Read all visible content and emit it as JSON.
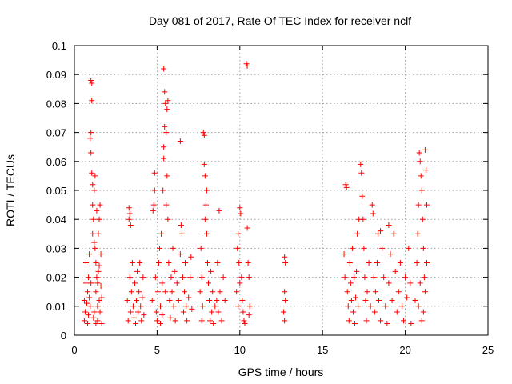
{
  "chart_data": {
    "type": "scatter",
    "title": "Day 081 of 2017, Rate Of TEC Index for receiver nclf",
    "xlabel": "GPS time / hours",
    "ylabel": "ROTI / TECUs",
    "xlim": [
      0,
      25
    ],
    "ylim": [
      0,
      0.1
    ],
    "xticks": [
      0,
      5,
      10,
      15,
      20,
      25
    ],
    "xtick_labels": [
      "0",
      "5",
      "10",
      "15",
      "20",
      "25"
    ],
    "yticks": [
      0,
      0.01,
      0.02,
      0.03,
      0.04,
      0.05,
      0.06,
      0.07,
      0.08,
      0.09,
      0.1
    ],
    "ytick_labels": [
      "0",
      "0.01",
      "0.02",
      "0.03",
      "0.04",
      "0.05",
      "0.06",
      "0.07",
      "0.08",
      "0.09",
      "0.1"
    ],
    "grid": true,
    "marker": "plus",
    "color": "#ff0000",
    "series": [
      {
        "name": "ROTI",
        "points": [
          [
            0.6,
            0.012
          ],
          [
            0.6,
            0.005
          ],
          [
            0.65,
            0.008
          ],
          [
            0.7,
            0.018
          ],
          [
            0.7,
            0.025
          ],
          [
            0.75,
            0.011
          ],
          [
            0.8,
            0.004
          ],
          [
            0.8,
            0.015
          ],
          [
            0.85,
            0.02
          ],
          [
            0.85,
            0.007
          ],
          [
            0.9,
            0.013
          ],
          [
            0.9,
            0.028
          ],
          [
            0.95,
            0.01
          ],
          [
            1.0,
            0.018
          ],
          [
            1.0,
            0.088
          ],
          [
            1.05,
            0.087
          ],
          [
            1.05,
            0.081
          ],
          [
            1.0,
            0.07
          ],
          [
            0.95,
            0.068
          ],
          [
            1.0,
            0.063
          ],
          [
            1.05,
            0.056
          ],
          [
            1.1,
            0.052
          ],
          [
            1.1,
            0.045
          ],
          [
            1.15,
            0.04
          ],
          [
            1.1,
            0.035
          ],
          [
            1.2,
            0.032
          ],
          [
            1.2,
            0.05
          ],
          [
            1.25,
            0.055
          ],
          [
            1.25,
            0.03
          ],
          [
            1.3,
            0.025
          ],
          [
            1.3,
            0.015
          ],
          [
            1.35,
            0.043
          ],
          [
            1.35,
            0.02
          ],
          [
            1.4,
            0.01
          ],
          [
            1.4,
            0.005
          ],
          [
            1.45,
            0.022
          ],
          [
            1.45,
            0.035
          ],
          [
            1.5,
            0.012
          ],
          [
            1.5,
            0.04
          ],
          [
            1.55,
            0.008
          ],
          [
            1.55,
            0.045
          ],
          [
            1.6,
            0.017
          ],
          [
            1.6,
            0.028
          ],
          [
            1.65,
            0.004
          ],
          [
            1.65,
            0.013
          ],
          [
            1.2,
            0.008
          ],
          [
            1.15,
            0.006
          ],
          [
            1.3,
            0.004
          ],
          [
            1.4,
            0.018
          ],
          [
            1.5,
            0.024
          ],
          [
            3.2,
            0.012
          ],
          [
            3.25,
            0.005
          ],
          [
            3.3,
            0.04
          ],
          [
            3.3,
            0.044
          ],
          [
            3.35,
            0.042
          ],
          [
            3.4,
            0.038
          ],
          [
            3.35,
            0.02
          ],
          [
            3.4,
            0.008
          ],
          [
            3.45,
            0.015
          ],
          [
            3.5,
            0.025
          ],
          [
            3.55,
            0.01
          ],
          [
            3.6,
            0.006
          ],
          [
            3.65,
            0.018
          ],
          [
            3.7,
            0.004
          ],
          [
            3.75,
            0.012
          ],
          [
            3.8,
            0.022
          ],
          [
            3.85,
            0.008
          ],
          [
            3.9,
            0.015
          ],
          [
            3.95,
            0.025
          ],
          [
            4.0,
            0.01
          ],
          [
            4.05,
            0.005
          ],
          [
            4.1,
            0.013
          ],
          [
            4.15,
            0.02
          ],
          [
            4.2,
            0.007
          ],
          [
            4.7,
            0.012
          ],
          [
            4.75,
            0.043
          ],
          [
            4.8,
            0.045
          ],
          [
            4.85,
            0.05
          ],
          [
            4.85,
            0.056
          ],
          [
            4.9,
            0.02
          ],
          [
            4.95,
            0.008
          ],
          [
            5.0,
            0.005
          ],
          [
            5.05,
            0.015
          ],
          [
            5.1,
            0.025
          ],
          [
            5.15,
            0.03
          ],
          [
            5.2,
            0.01
          ],
          [
            5.25,
            0.035
          ],
          [
            5.3,
            0.018
          ],
          [
            5.35,
            0.05
          ],
          [
            5.4,
            0.061
          ],
          [
            5.4,
            0.065
          ],
          [
            5.45,
            0.072
          ],
          [
            5.45,
            0.084
          ],
          [
            5.4,
            0.092
          ],
          [
            5.5,
            0.08
          ],
          [
            5.55,
            0.07
          ],
          [
            5.6,
            0.078
          ],
          [
            5.65,
            0.081
          ],
          [
            5.6,
            0.055
          ],
          [
            5.55,
            0.045
          ],
          [
            5.65,
            0.04
          ],
          [
            5.7,
            0.025
          ],
          [
            5.75,
            0.012
          ],
          [
            5.8,
            0.006
          ],
          [
            5.85,
            0.02
          ],
          [
            5.9,
            0.015
          ],
          [
            5.95,
            0.03
          ],
          [
            6.0,
            0.01
          ],
          [
            6.05,
            0.022
          ],
          [
            6.1,
            0.005
          ],
          [
            6.2,
            0.018
          ],
          [
            6.3,
            0.012
          ],
          [
            6.4,
            0.067
          ],
          [
            6.4,
            0.028
          ],
          [
            6.45,
            0.038
          ],
          [
            6.5,
            0.035
          ],
          [
            6.55,
            0.02
          ],
          [
            6.6,
            0.008
          ],
          [
            6.65,
            0.015
          ],
          [
            6.7,
            0.025
          ],
          [
            6.75,
            0.01
          ],
          [
            6.8,
            0.005
          ],
          [
            6.9,
            0.013
          ],
          [
            7.0,
            0.02
          ],
          [
            7.05,
            0.027
          ],
          [
            7.1,
            0.009
          ],
          [
            5.2,
            0.004
          ],
          [
            5.3,
            0.007
          ],
          [
            5.5,
            0.015
          ],
          [
            7.6,
            0.015
          ],
          [
            7.65,
            0.03
          ],
          [
            7.7,
            0.02
          ],
          [
            7.75,
            0.01
          ],
          [
            7.8,
            0.07
          ],
          [
            7.85,
            0.069
          ],
          [
            7.85,
            0.059
          ],
          [
            7.9,
            0.055
          ],
          [
            7.95,
            0.045
          ],
          [
            8.0,
            0.05
          ],
          [
            7.9,
            0.04
          ],
          [
            8.0,
            0.035
          ],
          [
            8.05,
            0.025
          ],
          [
            8.1,
            0.018
          ],
          [
            8.15,
            0.012
          ],
          [
            8.2,
            0.005
          ],
          [
            8.25,
            0.022
          ],
          [
            8.3,
            0.008
          ],
          [
            7.7,
            0.005
          ],
          [
            8.35,
            0.015
          ],
          [
            8.4,
            0.004
          ],
          [
            8.5,
            0.01
          ],
          [
            8.6,
            0.012
          ],
          [
            8.7,
            0.008
          ],
          [
            8.75,
            0.043
          ],
          [
            8.8,
            0.015
          ],
          [
            8.9,
            0.005
          ],
          [
            9.0,
            0.02
          ],
          [
            9.1,
            0.012
          ],
          [
            8.65,
            0.025
          ],
          [
            9.8,
            0.015
          ],
          [
            9.85,
            0.03
          ],
          [
            9.9,
            0.035
          ],
          [
            9.95,
            0.025
          ],
          [
            10.0,
            0.044
          ],
          [
            10.05,
            0.042
          ],
          [
            10.1,
            0.02
          ],
          [
            10.15,
            0.012
          ],
          [
            10.2,
            0.008
          ],
          [
            10.25,
            0.005
          ],
          [
            9.9,
            0.01
          ],
          [
            10.0,
            0.018
          ],
          [
            10.3,
            0.004
          ],
          [
            10.4,
            0.0937
          ],
          [
            10.45,
            0.093
          ],
          [
            10.45,
            0.037
          ],
          [
            10.5,
            0.025
          ],
          [
            10.55,
            0.02
          ],
          [
            10.6,
            0.01
          ],
          [
            10.55,
            0.007
          ],
          [
            12.7,
            0.027
          ],
          [
            12.75,
            0.025
          ],
          [
            12.7,
            0.015
          ],
          [
            12.75,
            0.012
          ],
          [
            12.65,
            0.008
          ],
          [
            12.7,
            0.005
          ],
          [
            16.3,
            0.028
          ],
          [
            16.35,
            0.02
          ],
          [
            16.4,
            0.052
          ],
          [
            16.45,
            0.051
          ],
          [
            16.5,
            0.015
          ],
          [
            16.55,
            0.01
          ],
          [
            16.6,
            0.005
          ],
          [
            16.65,
            0.025
          ],
          [
            16.7,
            0.018
          ],
          [
            16.75,
            0.012
          ],
          [
            16.8,
            0.03
          ],
          [
            16.85,
            0.008
          ],
          [
            16.9,
            0.02
          ],
          [
            16.95,
            0.004
          ],
          [
            17.0,
            0.013
          ],
          [
            17.05,
            0.022
          ],
          [
            17.1,
            0.035
          ],
          [
            17.15,
            0.01
          ],
          [
            17.2,
            0.04
          ],
          [
            17.3,
            0.059
          ],
          [
            17.35,
            0.056
          ],
          [
            17.4,
            0.048
          ],
          [
            17.45,
            0.04
          ],
          [
            17.5,
            0.03
          ],
          [
            17.55,
            0.02
          ],
          [
            17.6,
            0.012
          ],
          [
            17.65,
            0.005
          ],
          [
            17.7,
            0.015
          ],
          [
            17.8,
            0.025
          ],
          [
            17.9,
            0.01
          ],
          [
            18.0,
            0.045
          ],
          [
            18.05,
            0.042
          ],
          [
            18.1,
            0.02
          ],
          [
            18.15,
            0.008
          ],
          [
            18.2,
            0.015
          ],
          [
            18.3,
            0.025
          ],
          [
            18.35,
            0.035
          ],
          [
            18.4,
            0.012
          ],
          [
            18.5,
            0.005
          ],
          [
            18.6,
            0.03
          ],
          [
            18.7,
            0.02
          ],
          [
            18.8,
            0.01
          ],
          [
            18.9,
            0.004
          ],
          [
            19.0,
            0.018
          ],
          [
            19.1,
            0.028
          ],
          [
            19.2,
            0.012
          ],
          [
            19.3,
            0.035
          ],
          [
            19.4,
            0.022
          ],
          [
            19.5,
            0.008
          ],
          [
            19.6,
            0.015
          ],
          [
            19.7,
            0.025
          ],
          [
            19.8,
            0.01
          ],
          [
            19.9,
            0.005
          ],
          [
            20.0,
            0.02
          ],
          [
            20.1,
            0.013
          ],
          [
            20.2,
            0.03
          ],
          [
            20.3,
            0.018
          ],
          [
            20.35,
            0.004
          ],
          [
            19.0,
            0.038
          ],
          [
            18.5,
            0.036
          ],
          [
            20.6,
            0.012
          ],
          [
            20.7,
            0.025
          ],
          [
            20.75,
            0.035
          ],
          [
            20.8,
            0.045
          ],
          [
            20.85,
            0.063
          ],
          [
            20.9,
            0.06
          ],
          [
            20.95,
            0.055
          ],
          [
            21.0,
            0.05
          ],
          [
            21.05,
            0.04
          ],
          [
            21.1,
            0.03
          ],
          [
            21.15,
            0.02
          ],
          [
            21.2,
            0.064
          ],
          [
            21.25,
            0.057
          ],
          [
            21.3,
            0.045
          ],
          [
            21.2,
            0.015
          ],
          [
            21.1,
            0.008
          ],
          [
            21.0,
            0.005
          ],
          [
            20.9,
            0.018
          ],
          [
            20.8,
            0.01
          ],
          [
            21.3,
            0.025
          ]
        ]
      }
    ]
  }
}
